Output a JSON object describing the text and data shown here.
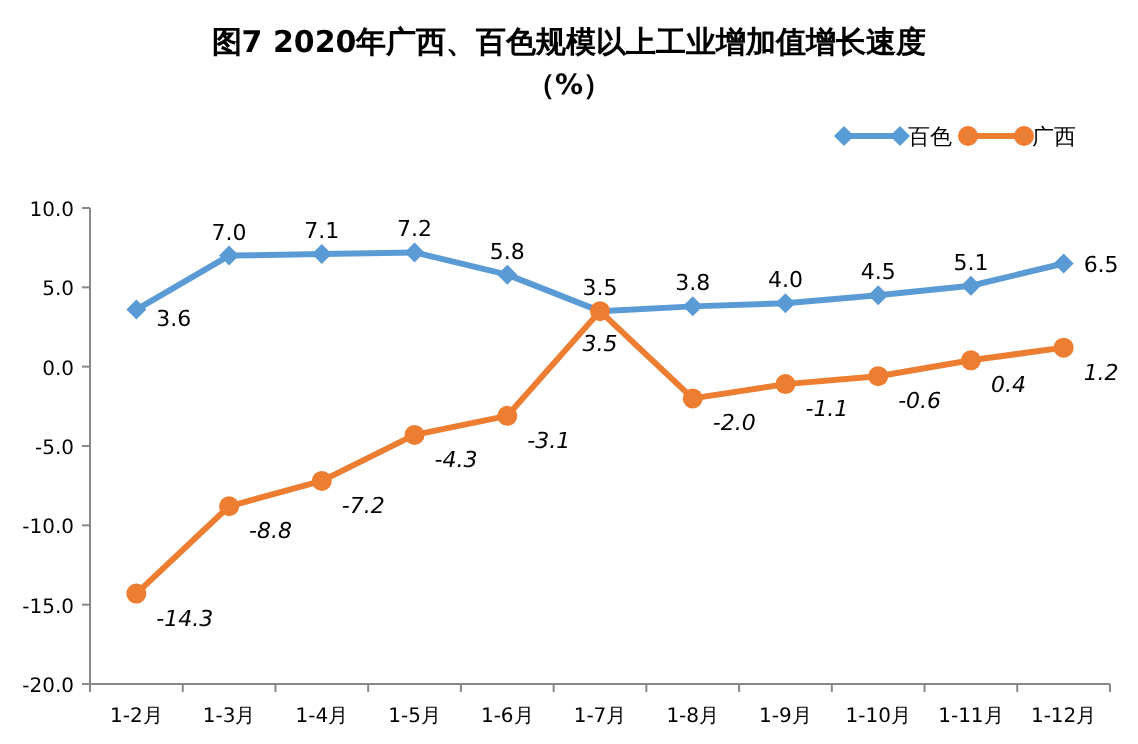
{
  "chart_data": {
    "type": "line",
    "title": "图7  2020年广西、百色规模以上工业增加值增长速度",
    "subtitle": "（%）",
    "categories": [
      "1-2月",
      "1-3月",
      "1-4月",
      "1-5月",
      "1-6月",
      "1-7月",
      "1-8月",
      "1-9月",
      "1-10月",
      "1-11月",
      "1-12月"
    ],
    "series": [
      {
        "name": "百色",
        "color": "#5b9bd5",
        "marker": "diamond",
        "values": [
          3.6,
          7.0,
          7.1,
          7.2,
          5.8,
          3.5,
          3.8,
          4.0,
          4.5,
          5.1,
          6.5
        ],
        "value_labels": [
          "3.6",
          "7.0",
          "7.1",
          "7.2",
          "5.8",
          "3.5",
          "3.8",
          "4.0",
          "4.5",
          "5.1",
          "6.5"
        ]
      },
      {
        "name": "广西",
        "color": "#ed7d31",
        "marker": "circle",
        "values": [
          -14.3,
          -8.8,
          -7.2,
          -4.3,
          -3.1,
          3.5,
          -2.0,
          -1.1,
          -0.6,
          0.4,
          1.2
        ],
        "value_labels": [
          "-14.3",
          "-8.8",
          "-7.2",
          "-4.3",
          "-3.1",
          "3.5",
          "-2.0",
          "-1.1",
          "-0.6",
          "0.4",
          "1.2"
        ]
      }
    ],
    "ylim": [
      -20,
      10
    ],
    "yticks": [
      {
        "value": -20,
        "label": "-20.0"
      },
      {
        "value": -15,
        "label": "-15.0"
      },
      {
        "value": -10,
        "label": "-10.0"
      },
      {
        "value": -5,
        "label": "-5.0"
      },
      {
        "value": 0,
        "label": "0.0"
      },
      {
        "value": 5,
        "label": "5.0"
      },
      {
        "value": 10,
        "label": "10.0"
      }
    ],
    "grid": false,
    "legend": "top right",
    "line_style": "solid"
  }
}
